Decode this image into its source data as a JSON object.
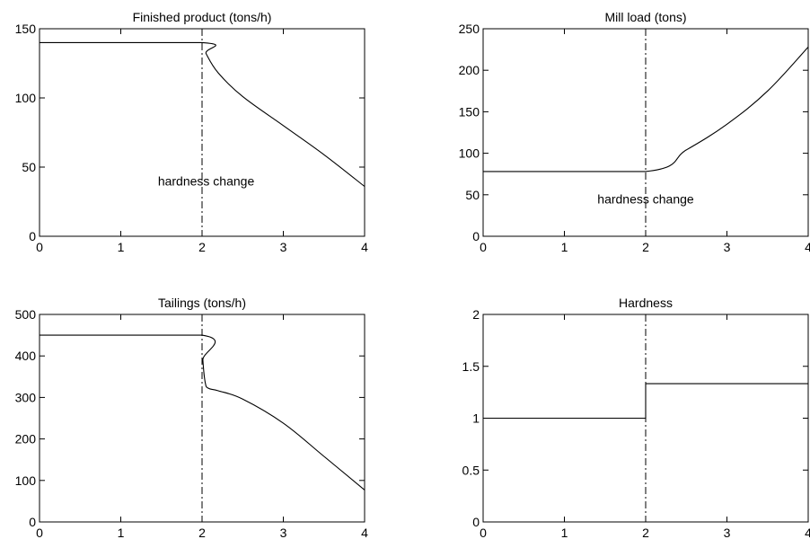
{
  "chart_data": [
    {
      "type": "line",
      "title": "Finished product (tons/h)",
      "xlim": [
        0,
        4
      ],
      "ylim": [
        0,
        150
      ],
      "xticks": [
        "0",
        "1",
        "2",
        "3",
        "4"
      ],
      "yticks": [
        "0",
        "50",
        "100",
        "150"
      ],
      "grid": false,
      "series": [
        {
          "x": [
            0,
            2,
            2.05,
            2.2,
            2.5,
            3.0,
            3.5,
            4.0
          ],
          "y": [
            140,
            140,
            132,
            118,
            101,
            80,
            59,
            36
          ]
        }
      ],
      "event_line_x": 2,
      "annotation": {
        "text": "hardness change",
        "x": 2.05,
        "y": 40
      }
    },
    {
      "type": "line",
      "title": "Mill load (tons)",
      "xlim": [
        0,
        4
      ],
      "ylim": [
        0,
        250
      ],
      "xticks": [
        "0",
        "1",
        "2",
        "3",
        "4"
      ],
      "yticks": [
        "0",
        "50",
        "100",
        "150",
        "200",
        "250"
      ],
      "grid": false,
      "series": [
        {
          "x": [
            0,
            2,
            2.5,
            3.0,
            3.5,
            4.0
          ],
          "y": [
            78,
            78,
            104,
            135,
            175,
            228
          ]
        }
      ],
      "event_line_x": 2,
      "annotation": {
        "text": "hardness change",
        "x": 2.0,
        "y": 45
      }
    },
    {
      "type": "line",
      "title": "Tailings (tons/h)",
      "xlim": [
        0,
        4
      ],
      "ylim": [
        0,
        500
      ],
      "xticks": [
        "0",
        "1",
        "2",
        "3",
        "4"
      ],
      "yticks": [
        "0",
        "100",
        "200",
        "300",
        "400",
        "500"
      ],
      "grid": false,
      "series": [
        {
          "x": [
            0,
            2,
            2.01,
            2.04,
            2.08,
            2.2,
            2.5,
            3.0,
            3.5,
            4.0
          ],
          "y": [
            450,
            450,
            390,
            335,
            322,
            316,
            296,
            238,
            158,
            77
          ]
        }
      ],
      "event_line_x": 2
    },
    {
      "type": "line",
      "title": "Hardness",
      "xlim": [
        0,
        4
      ],
      "ylim": [
        0,
        2
      ],
      "xticks": [
        "0",
        "1",
        "2",
        "3",
        "4"
      ],
      "yticks": [
        "0",
        "0.5",
        "1",
        "1.5",
        "2"
      ],
      "grid": false,
      "series": [
        {
          "x": [
            0,
            2,
            2,
            4
          ],
          "y": [
            1,
            1,
            1.333,
            1.333
          ]
        }
      ],
      "event_line_x": 2
    }
  ]
}
